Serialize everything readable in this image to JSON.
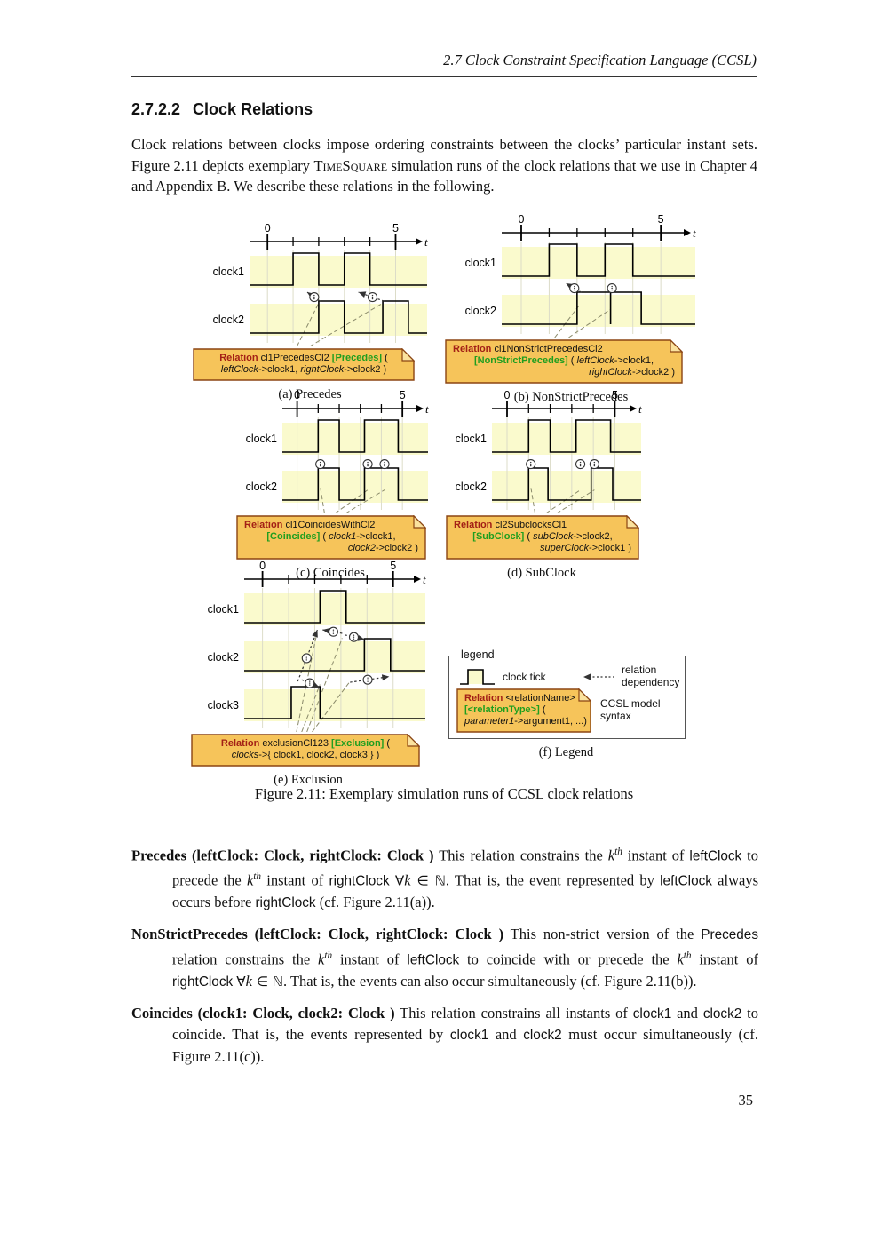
{
  "header": {
    "text": "2.7  Clock Constraint Specification Language (CCSL)"
  },
  "section": {
    "number": "2.7.2.2",
    "title": "Clock Relations"
  },
  "intro": [
    {
      "t": "Clock relations between clocks impose ordering constraints between the clocks’ particular instant sets. Figure 2.11 depicts exemplary ",
      "s": "p"
    },
    {
      "t": "TimeSquare",
      "s": "sc"
    },
    {
      "t": " simulation runs of the clock relations that we use in Chapter 4 and Appendix B. We describe these relations in the following.",
      "s": "p"
    }
  ],
  "figure": {
    "caption": "Figure 2.11: Exemplary simulation runs of CCSL clock relations",
    "timeline": {
      "tick_start": "0",
      "tick_end": "5",
      "axis_label": "t"
    },
    "colors": {
      "band": "#fafacd",
      "grid": "#dcdcc8",
      "wave": "#000000",
      "note_fill": "#f6c45a",
      "note_fold": "#fbe29e",
      "note_border": "#8b4513",
      "dep": "#333333",
      "callout": "#8a8a6a",
      "keyword": "#a32016",
      "type": "#1f9e1f"
    },
    "panels": [
      {
        "id": "a",
        "caption": "(a) Precedes",
        "clocks": [
          {
            "label": "clock1",
            "pulses": [
              [
                1,
                2
              ],
              [
                3,
                4
              ]
            ]
          },
          {
            "label": "clock2",
            "pulses": [
              [
                2,
                3
              ],
              [
                4.5,
                5.5
              ]
            ]
          }
        ],
        "deps": [
          {
            "tail": [
              2.05,
              1,
              -0.08
            ],
            "head": [
              1.55,
              0,
              1.14
            ]
          },
          {
            "tail": [
              4.55,
              1,
              -0.08
            ],
            "head": [
              3.55,
              0,
              1.14
            ]
          }
        ],
        "callouts": [
          {
            "fromT": 1.15,
            "to": [
              2.0,
              1,
              -0.02
            ]
          },
          {
            "fromT": 1.65,
            "to": [
              4.5,
              1,
              -0.02
            ]
          }
        ],
        "note": {
          "align": [
            "center",
            "center"
          ],
          "lines": [
            [
              {
                "t": "Relation",
                "s": "kw"
              },
              {
                "t": " cl1PrecedesCl2 ",
                "s": "np"
              },
              {
                "t": "[Precedes]",
                "s": "ty"
              },
              {
                "t": " (",
                "s": "np"
              }
            ],
            [
              {
                "t": "leftClock",
                "s": "nit"
              },
              {
                "t": "->clock1, ",
                "s": "np"
              },
              {
                "t": "rightClock",
                "s": "nit"
              },
              {
                "t": "->clock2 )",
                "s": "np"
              }
            ]
          ]
        }
      },
      {
        "id": "b",
        "caption": "(b) NonStrictPrecedes",
        "clocks": [
          {
            "label": "clock1",
            "pulses": [
              [
                1,
                2
              ],
              [
                3,
                4
              ]
            ]
          },
          {
            "label": "clock2",
            "pulses": [
              [
                2,
                3.2
              ],
              [
                3.2,
                4.3
              ]
            ]
          }
        ],
        "deps": [
          {
            "tail": [
              2.15,
              1,
              -0.08
            ],
            "head": [
              1.6,
              0,
              1.14
            ]
          },
          {
            "tail": [
              3.25,
              1,
              -0.08
            ],
            "head": [
              3.25,
              0,
              1.14
            ]
          }
        ],
        "callouts": [
          {
            "fromT": 1.2,
            "to": [
              2.1,
              1,
              0.3
            ]
          },
          {
            "fromT": 1.7,
            "to": [
              3.2,
              1,
              0.45
            ]
          }
        ],
        "note": {
          "align": [
            "left",
            "center",
            "right"
          ],
          "lines": [
            [
              {
                "t": "Relation",
                "s": "kw"
              },
              {
                "t": " cl1NonStrictPrecedesCl2",
                "s": "np"
              }
            ],
            [
              {
                "t": "[NonStrictPrecedes]",
                "s": "ty"
              },
              {
                "t": " ( ",
                "s": "np"
              },
              {
                "t": "leftClock",
                "s": "nit"
              },
              {
                "t": "->clock1,",
                "s": "np"
              }
            ],
            [
              {
                "t": "rightClock",
                "s": "nit"
              },
              {
                "t": "->clock2 )",
                "s": "np"
              }
            ]
          ]
        }
      },
      {
        "id": "c",
        "caption": "(c) Coincides",
        "clocks": [
          {
            "label": "clock1",
            "pulses": [
              [
                1,
                2
              ],
              [
                3.2,
                4.8
              ]
            ]
          },
          {
            "label": "clock2",
            "pulses": [
              [
                1,
                2
              ],
              [
                3.2,
                4.8
              ]
            ]
          }
        ],
        "deps": [
          {
            "tail": [
              1.1,
              1,
              -0.08
            ],
            "head": [
              1.1,
              0,
              1.14
            ]
          },
          {
            "tail": [
              3.35,
              1,
              -0.08
            ],
            "head": [
              3.35,
              0,
              1.14
            ]
          },
          {
            "tail": [
              4.15,
              1,
              -0.08
            ],
            "head": [
              4.15,
              0,
              1.14
            ]
          }
        ],
        "callouts": [
          {
            "fromT": 1.3,
            "to": [
              1.1,
              1,
              0.5
            ]
          },
          {
            "fromT": 1.8,
            "to": [
              3.35,
              1,
              0.6
            ]
          },
          {
            "fromT": 2.3,
            "to": [
              4.15,
              1,
              0.6
            ]
          }
        ],
        "note": {
          "align": [
            "left",
            "center",
            "right"
          ],
          "lines": [
            [
              {
                "t": "Relation",
                "s": "kw"
              },
              {
                "t": " cl1CoincidesWithCl2",
                "s": "np"
              }
            ],
            [
              {
                "t": "[Coincides]",
                "s": "ty"
              },
              {
                "t": " ( ",
                "s": "np"
              },
              {
                "t": "clock1",
                "s": "nit"
              },
              {
                "t": "->clock1,",
                "s": "np"
              }
            ],
            [
              {
                "t": "clock2",
                "s": "nit"
              },
              {
                "t": "->clock2 )",
                "s": "np"
              }
            ]
          ]
        }
      },
      {
        "id": "d",
        "caption": "(d) SubClock",
        "clocks": [
          {
            "label": "clock1",
            "pulses": [
              [
                1,
                2
              ],
              [
                3.2,
                4.8
              ]
            ]
          },
          {
            "label": "clock2",
            "pulses": [
              [
                1,
                1.9
              ],
              [
                3.9,
                4.9
              ]
            ]
          }
        ],
        "deps": [
          {
            "tail": [
              1.1,
              1,
              -0.08
            ],
            "head": [
              1.1,
              0,
              1.14
            ]
          },
          {
            "tail": [
              3.4,
              1,
              -0.08
            ],
            "head": [
              3.4,
              0,
              1.14
            ]
          },
          {
            "tail": [
              4.05,
              1,
              -0.08
            ],
            "head": [
              4.05,
              0,
              1.14
            ]
          }
        ],
        "callouts": [
          {
            "fromT": 1.3,
            "to": [
              1.1,
              1,
              0.5
            ]
          },
          {
            "fromT": 1.8,
            "to": [
              3.4,
              1,
              0.6
            ]
          },
          {
            "fromT": 2.3,
            "to": [
              4.05,
              1,
              0.6
            ]
          }
        ],
        "note": {
          "align": [
            "left",
            "center",
            "right"
          ],
          "lines": [
            [
              {
                "t": "Relation",
                "s": "kw"
              },
              {
                "t": " cl2SubclocksCl1",
                "s": "np"
              }
            ],
            [
              {
                "t": "[SubClock]",
                "s": "ty"
              },
              {
                "t": " ( ",
                "s": "np"
              },
              {
                "t": "subClock",
                "s": "nit"
              },
              {
                "t": "->clock2,",
                "s": "np"
              }
            ],
            [
              {
                "t": "superClock",
                "s": "nit"
              },
              {
                "t": "->clock1 )",
                "s": "np"
              }
            ]
          ]
        }
      },
      {
        "id": "e",
        "caption": "(e) Exclusion",
        "clocks": [
          {
            "label": "clock1",
            "pulses": [
              [
                2.2,
                3.2
              ]
            ]
          },
          {
            "label": "clock2",
            "pulses": [
              [
                3.9,
                4.9
              ]
            ]
          },
          {
            "label": "clock3",
            "pulses": [
              [
                1.1,
                2.2
              ]
            ]
          }
        ],
        "deps": [
          {
            "tail": [
              1.35,
              1,
              1.25
            ],
            "head": [
              2.1,
              0,
              1.14
            ]
          },
          {
            "tail": [
              3.05,
              0,
              1.25
            ],
            "head": [
              2.3,
              0,
              1.14
            ]
          },
          {
            "tail": [
              3.15,
              0,
              1.3
            ],
            "head": [
              3.92,
              1,
              -0.05
            ]
          },
          {
            "tail": [
              3.35,
              1,
              1.28
            ],
            "head": [
              4.85,
              1,
              1.1
            ]
          },
          {
            "tail": [
              1.5,
              1,
              1.2
            ],
            "head": [
              2.18,
              2,
              -0.06
            ]
          }
        ],
        "callouts": [
          {
            "fromT": 1.3,
            "to": [
              2.08,
              0,
              1.25
            ]
          },
          {
            "fromT": 1.5,
            "to": [
              2.2,
              1,
              1.35
            ]
          },
          {
            "fromT": 1.7,
            "to": [
              3.05,
              0,
              1.4
            ]
          },
          {
            "fromT": 1.9,
            "to": [
              3.35,
              1,
              1.25
            ]
          }
        ],
        "note": {
          "align": [
            "center",
            "center"
          ],
          "lines": [
            [
              {
                "t": "Relation",
                "s": "kw"
              },
              {
                "t": " exclusionCl123 ",
                "s": "np"
              },
              {
                "t": "[Exclusion]",
                "s": "ty"
              },
              {
                "t": " (",
                "s": "np"
              }
            ],
            [
              {
                "t": "clocks",
                "s": "nit"
              },
              {
                "t": "->{ clock1, clock2, clock3 } )",
                "s": "np"
              }
            ]
          ]
        }
      }
    ],
    "legend": {
      "title": "legend",
      "caption": "(f) Legend",
      "clock_tick_label": "clock tick",
      "dependency_label_line1": "relation",
      "dependency_label_line2": "dependency",
      "syntax_label_line1": "CCSL model",
      "syntax_label_line2": "syntax",
      "note": {
        "align": [
          "left",
          "left",
          "center"
        ],
        "lines": [
          [
            {
              "t": "Relation",
              "s": "kw"
            },
            {
              "t": " <relationName>",
              "s": "np"
            }
          ],
          [
            {
              "t": "[<relationType>]",
              "s": "ty"
            },
            {
              "t": " (",
              "s": "np"
            }
          ],
          [
            {
              "t": "parameter1",
              "s": "nit"
            },
            {
              "t": "->argument1, ...)",
              "s": "np"
            }
          ]
        ]
      }
    }
  },
  "definitions": [
    {
      "segments": [
        {
          "t": "Precedes (leftClock: Clock, rightClock: Clock )",
          "s": "b"
        },
        {
          "t": " This relation constrains the ",
          "s": "p"
        },
        {
          "t": "k",
          "s": "ki"
        },
        {
          "t": "th",
          "s": "sup"
        },
        {
          "t": " instant of ",
          "s": "p"
        },
        {
          "t": "leftClock",
          "s": "sans"
        },
        {
          "t": " to precede the ",
          "s": "p"
        },
        {
          "t": "k",
          "s": "ki"
        },
        {
          "t": "th",
          "s": "sup"
        },
        {
          "t": " instant of ",
          "s": "p"
        },
        {
          "t": "rightClock",
          "s": "sans"
        },
        {
          "t": " ",
          "s": "p"
        },
        {
          "t": "∀",
          "s": "m"
        },
        {
          "t": "k",
          "s": "ki"
        },
        {
          "t": " ∈ ℕ",
          "s": "m"
        },
        {
          "t": ". That is, the event represented by ",
          "s": "p"
        },
        {
          "t": "leftClock",
          "s": "sans"
        },
        {
          "t": " always occurs before ",
          "s": "p"
        },
        {
          "t": "rightClock",
          "s": "sans"
        },
        {
          "t": " (cf. Figure 2.11(a)).",
          "s": "p"
        }
      ]
    },
    {
      "segments": [
        {
          "t": "NonStrictPrecedes (leftClock: Clock, rightClock: Clock )",
          "s": "b"
        },
        {
          "t": " This non-strict version of the ",
          "s": "p"
        },
        {
          "t": "Precedes",
          "s": "sans"
        },
        {
          "t": " relation constrains the ",
          "s": "p"
        },
        {
          "t": "k",
          "s": "ki"
        },
        {
          "t": "th",
          "s": "sup"
        },
        {
          "t": " instant of ",
          "s": "p"
        },
        {
          "t": "leftClock",
          "s": "sans"
        },
        {
          "t": " to coincide with or precede the ",
          "s": "p"
        },
        {
          "t": "k",
          "s": "ki"
        },
        {
          "t": "th",
          "s": "sup"
        },
        {
          "t": " instant of ",
          "s": "p"
        },
        {
          "t": "rightClock",
          "s": "sans"
        },
        {
          "t": " ",
          "s": "p"
        },
        {
          "t": "∀",
          "s": "m"
        },
        {
          "t": "k",
          "s": "ki"
        },
        {
          "t": " ∈ ℕ",
          "s": "m"
        },
        {
          "t": ". That is, the events can also occur simultaneously (cf. Figure 2.11(b)).",
          "s": "p"
        }
      ]
    },
    {
      "segments": [
        {
          "t": "Coincides (clock1: Clock, clock2: Clock )",
          "s": "b"
        },
        {
          "t": " This relation constrains all instants of ",
          "s": "p"
        },
        {
          "t": "clock1",
          "s": "sans"
        },
        {
          "t": " and ",
          "s": "p"
        },
        {
          "t": "clock2",
          "s": "sans"
        },
        {
          "t": " to coincide. That is, the events represented by ",
          "s": "p"
        },
        {
          "t": "clock1",
          "s": "sans"
        },
        {
          "t": " and ",
          "s": "p"
        },
        {
          "t": "clock2",
          "s": "sans"
        },
        {
          "t": " must occur simultaneously (cf. Figure 2.11(c)).",
          "s": "p"
        }
      ]
    }
  ],
  "page_number": "35"
}
